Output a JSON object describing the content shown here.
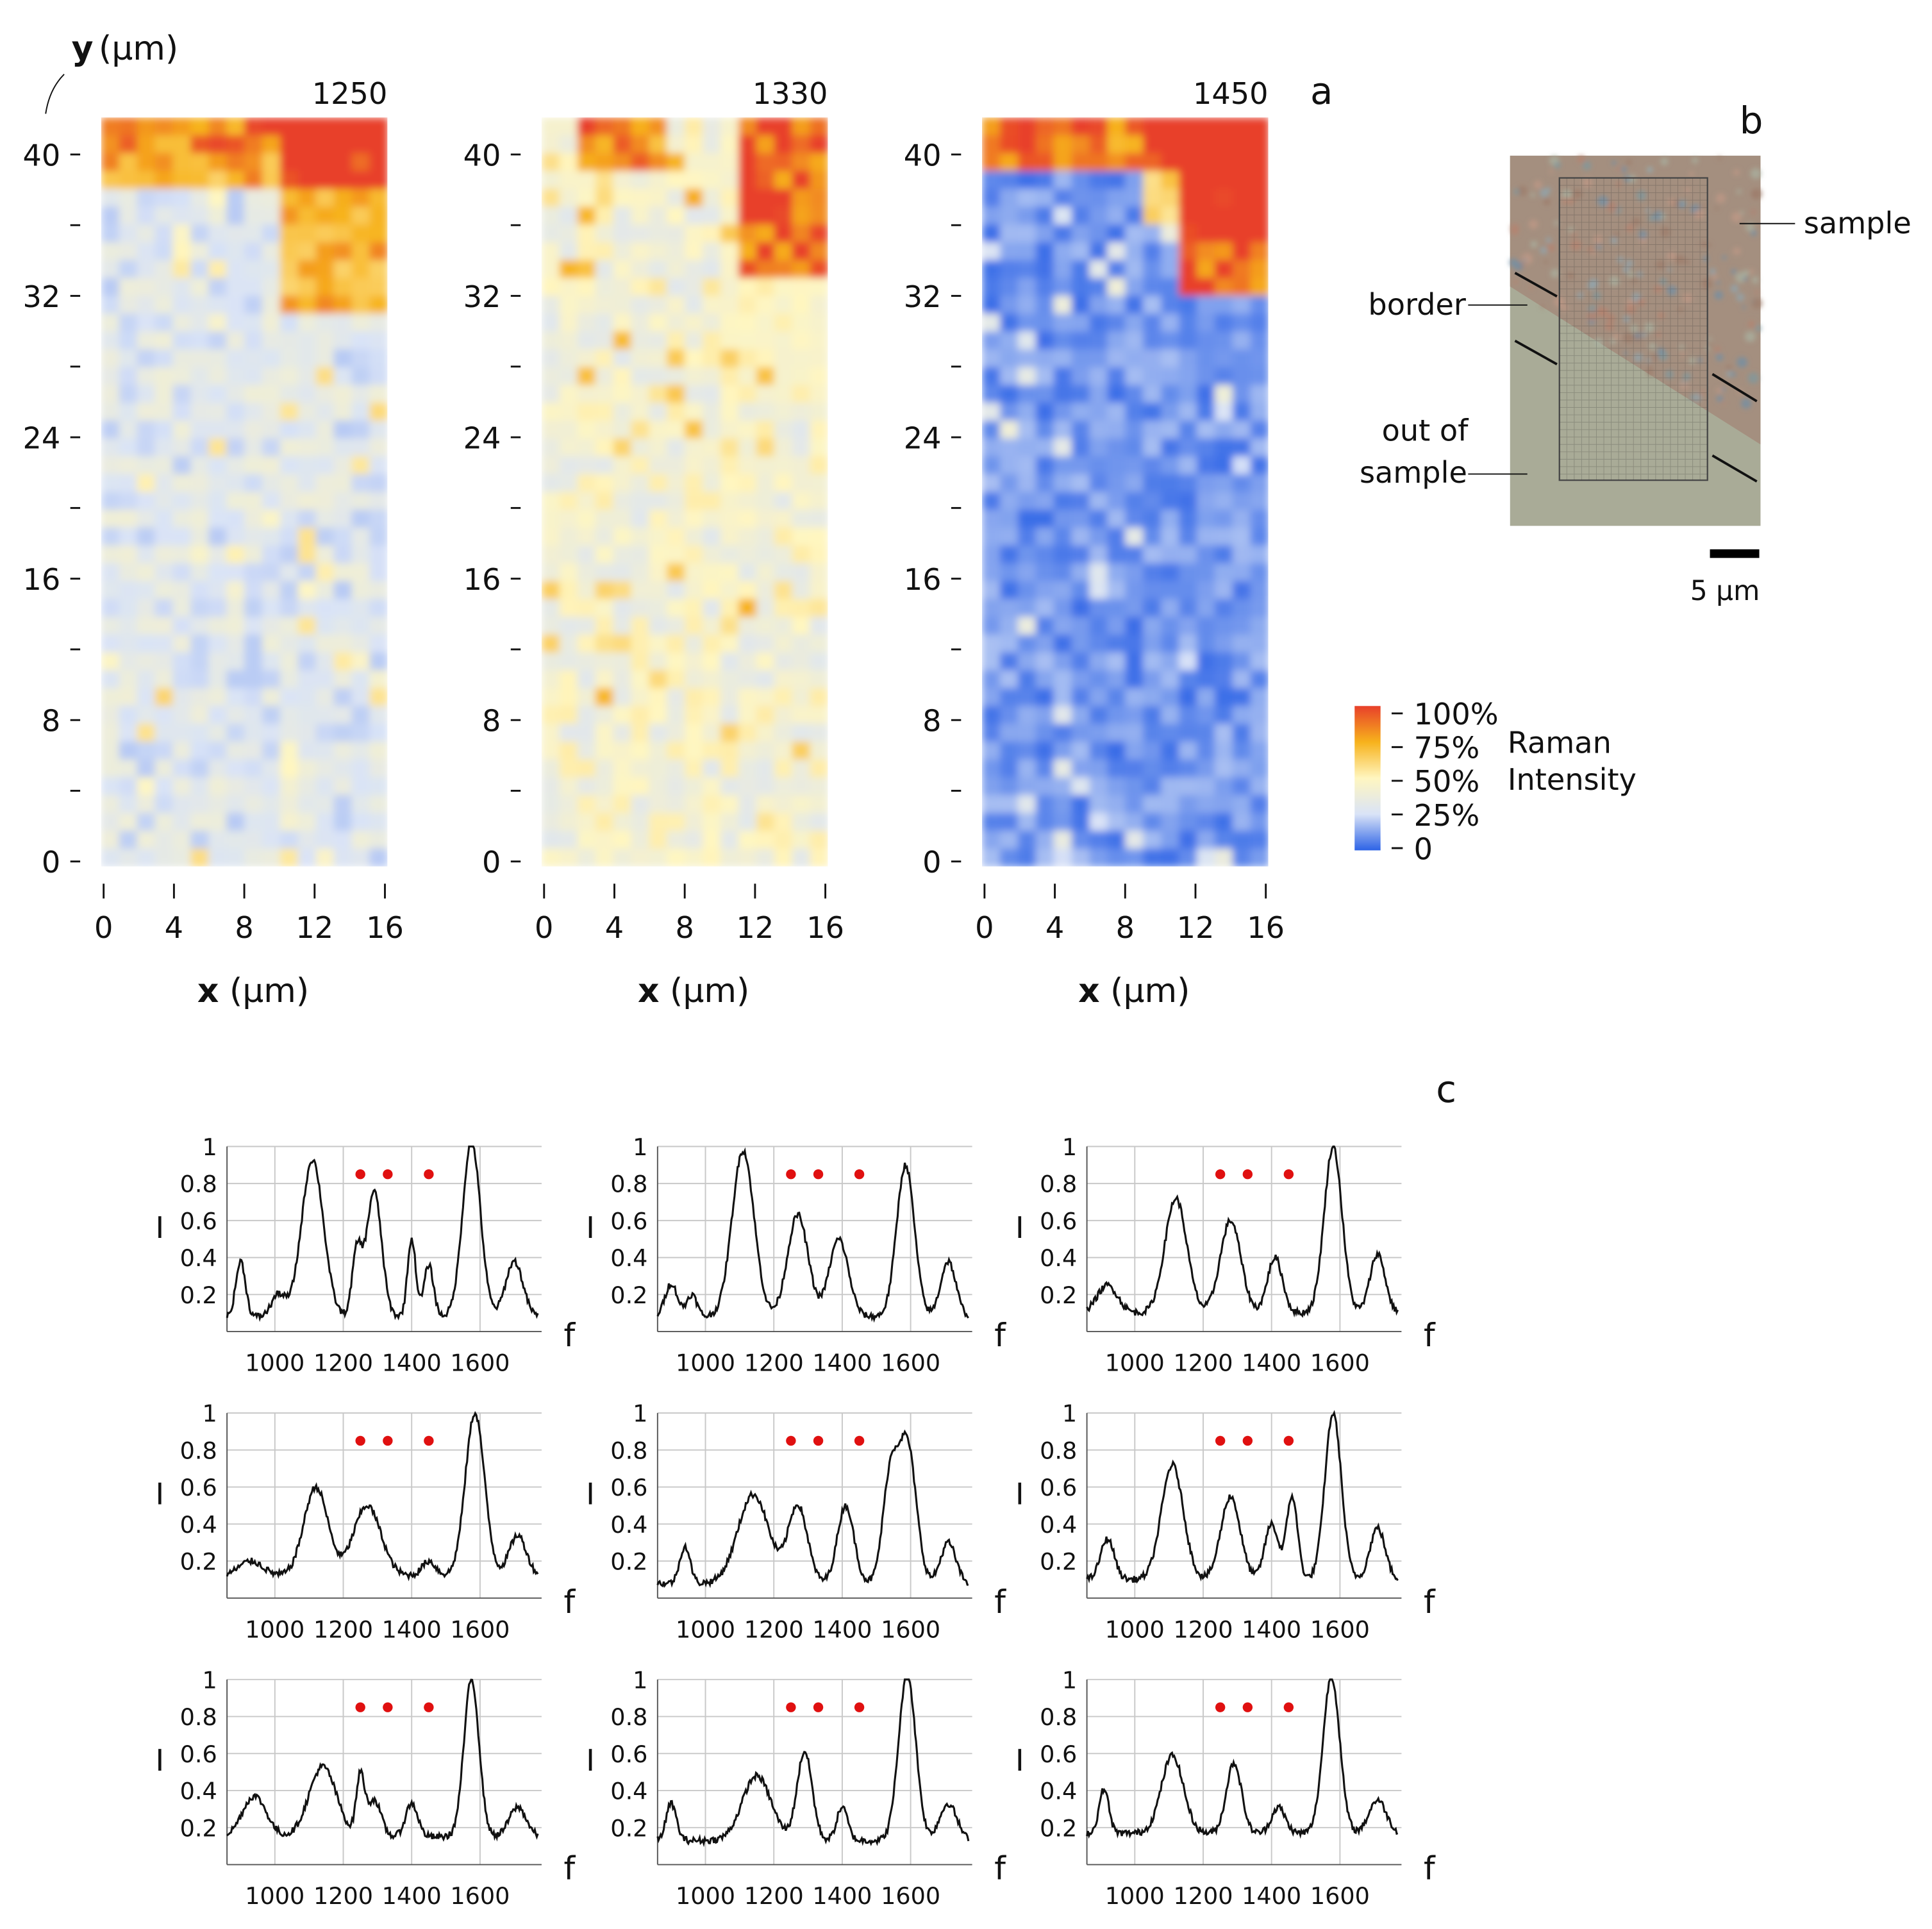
{
  "panels": {
    "a": "a",
    "b": "b",
    "c": "c"
  },
  "maps": {
    "y_axis_label": "y",
    "y_axis_unit": "(μm)",
    "x_axis_label": "x",
    "x_axis_unit": "(μm)",
    "y_ticks": [
      "0",
      "8",
      "16",
      "24",
      "32",
      "40"
    ],
    "x_ticks": [
      "0",
      "4",
      "8",
      "12",
      "16"
    ],
    "titles": [
      "1250",
      "1330",
      "1450"
    ]
  },
  "colorbar": {
    "ticks": [
      "100%",
      "75%",
      "50%",
      "25%",
      "0"
    ],
    "label_line1": "Raman",
    "label_line2": "Intensity",
    "colors": [
      "#e8402a",
      "#f7b21c",
      "#fff6c0",
      "#d9e3f7",
      "#2d63e6"
    ]
  },
  "micrograph": {
    "label_sample": "sample",
    "label_border": "border",
    "label_out1": "out of",
    "label_out2": "sample",
    "scale_bar": "5 μm"
  },
  "chart_data": [
    {
      "type": "heatmap",
      "title": "1250",
      "xlabel": "x (μm)",
      "ylabel": "y (μm)",
      "xlim": [
        0,
        16
      ],
      "ylim": [
        0,
        42
      ],
      "value_range": [
        "0",
        "100%"
      ],
      "high_region": "top-right"
    },
    {
      "type": "heatmap",
      "title": "1330",
      "xlabel": "x (μm)",
      "ylabel": "y (μm)",
      "xlim": [
        0,
        16
      ],
      "ylim": [
        0,
        42
      ],
      "value_range": [
        "0",
        "100%"
      ],
      "high_region": "top-right"
    },
    {
      "type": "heatmap",
      "title": "1450",
      "xlabel": "x (μm)",
      "ylabel": "y (μm)",
      "xlim": [
        0,
        16
      ],
      "ylim": [
        0,
        42
      ],
      "value_range": [
        "0",
        "100%"
      ],
      "high_region": "top-right"
    },
    {
      "type": "line",
      "grid": true,
      "xlabel": "f",
      "ylabel": "I",
      "xlim": [
        860,
        1780
      ],
      "ylim": [
        0.05,
        1.0
      ],
      "x_ticks": [
        "1000",
        "1200",
        "1400",
        "1600"
      ],
      "y_ticks": [
        "0.2",
        "0.4",
        "0.6",
        "0.8",
        "1"
      ],
      "markers_x": [
        1250,
        1330,
        1450
      ],
      "markers_y": 0.85,
      "marker_color": "#e01010",
      "line_color": "#111111",
      "spectra": [
        {
          "baseline": 0.08,
          "peaks": [
            [
              900,
              0.3,
              14
            ],
            [
              1010,
              0.12,
              20
            ],
            [
              1110,
              0.85,
              32
            ],
            [
              1240,
              0.35,
              14
            ],
            [
              1290,
              0.68,
              22
            ],
            [
              1400,
              0.42,
              12
            ],
            [
              1450,
              0.28,
              14
            ],
            [
              1575,
              0.95,
              26
            ],
            [
              1700,
              0.3,
              25
            ]
          ]
        },
        {
          "baseline": 0.08,
          "peaks": [
            [
              900,
              0.18,
              18
            ],
            [
              960,
              0.12,
              15
            ],
            [
              1110,
              0.9,
              32
            ],
            [
              1270,
              0.55,
              30
            ],
            [
              1390,
              0.42,
              28
            ],
            [
              1585,
              0.82,
              26
            ],
            [
              1710,
              0.3,
              22
            ]
          ]
        },
        {
          "baseline": 0.1,
          "peaks": [
            [
              920,
              0.15,
              30
            ],
            [
              1120,
              0.62,
              32
            ],
            [
              1280,
              0.5,
              30
            ],
            [
              1410,
              0.3,
              22
            ],
            [
              1580,
              0.9,
              26
            ],
            [
              1710,
              0.32,
              22
            ]
          ]
        },
        {
          "baseline": 0.12,
          "peaks": [
            [
              930,
              0.08,
              35
            ],
            [
              1120,
              0.48,
              35
            ],
            [
              1270,
              0.38,
              40
            ],
            [
              1450,
              0.08,
              20
            ],
            [
              1585,
              0.88,
              28
            ],
            [
              1710,
              0.22,
              25
            ]
          ]
        },
        {
          "baseline": 0.08,
          "peaks": [
            [
              940,
              0.2,
              15
            ],
            [
              1140,
              0.48,
              45
            ],
            [
              1270,
              0.42,
              28
            ],
            [
              1410,
              0.42,
              24
            ],
            [
              1540,
              0.55,
              22
            ],
            [
              1590,
              0.75,
              26
            ],
            [
              1710,
              0.22,
              22
            ]
          ]
        },
        {
          "baseline": 0.1,
          "peaks": [
            [
              920,
              0.22,
              20
            ],
            [
              1110,
              0.62,
              32
            ],
            [
              1280,
              0.45,
              28
            ],
            [
              1400,
              0.3,
              20
            ],
            [
              1460,
              0.45,
              16
            ],
            [
              1580,
              0.9,
              24
            ],
            [
              1710,
              0.28,
              22
            ]
          ]
        },
        {
          "baseline": 0.15,
          "peaks": [
            [
              940,
              0.22,
              35
            ],
            [
              1140,
              0.38,
              40
            ],
            [
              1250,
              0.32,
              12
            ],
            [
              1290,
              0.2,
              20
            ],
            [
              1400,
              0.18,
              18
            ],
            [
              1575,
              0.85,
              22
            ],
            [
              1710,
              0.16,
              25
            ]
          ]
        },
        {
          "baseline": 0.13,
          "peaks": [
            [
              900,
              0.2,
              15
            ],
            [
              1150,
              0.35,
              42
            ],
            [
              1290,
              0.48,
              22
            ],
            [
              1400,
              0.18,
              16
            ],
            [
              1590,
              0.9,
              25
            ],
            [
              1710,
              0.2,
              25
            ]
          ]
        },
        {
          "baseline": 0.17,
          "peaks": [
            [
              910,
              0.24,
              14
            ],
            [
              1110,
              0.42,
              32
            ],
            [
              1290,
              0.38,
              22
            ],
            [
              1420,
              0.14,
              20
            ],
            [
              1575,
              0.85,
              24
            ],
            [
              1710,
              0.18,
              25
            ]
          ]
        }
      ]
    }
  ]
}
